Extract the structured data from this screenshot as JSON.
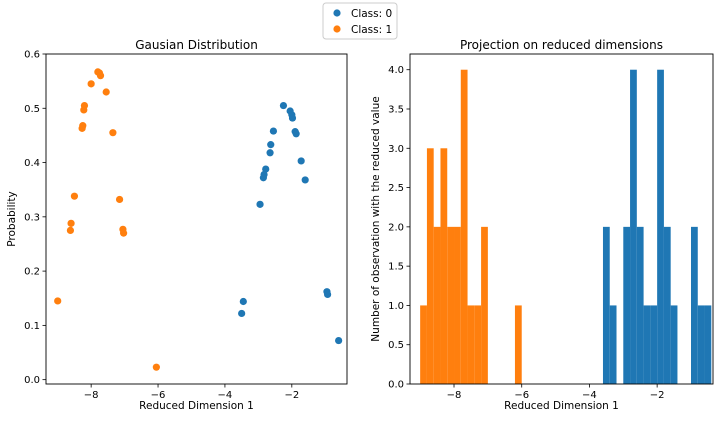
{
  "legend": {
    "entries": [
      {
        "label": "Class: 0",
        "color": "#1f77b4"
      },
      {
        "label": "Class: 1",
        "color": "#ff7f0e"
      }
    ],
    "placement": "top-center"
  },
  "chart_data": [
    {
      "type": "scatter",
      "title": "Gausian Distribution",
      "xlabel": "Reduced Dimension 1",
      "ylabel": "Probability",
      "xlim": [
        -9.35,
        -0.35
      ],
      "ylim": [
        -0.008,
        0.6
      ],
      "xticks": [
        -8,
        -6,
        -4,
        -2
      ],
      "xtick_labels": [
        "−8",
        "−6",
        "−4",
        "−2"
      ],
      "yticks": [
        0.0,
        0.1,
        0.2,
        0.3,
        0.4,
        0.5,
        0.6
      ],
      "ytick_labels": [
        "0.0",
        "0.1",
        "0.2",
        "0.3",
        "0.4",
        "0.5",
        "0.6"
      ],
      "grid": false,
      "series": [
        {
          "name": "Class: 0",
          "color": "#1f77b4",
          "points": [
            [
              -2.25,
              0.505
            ],
            [
              -2.05,
              0.495
            ],
            [
              -2.0,
              0.488
            ],
            [
              -1.98,
              0.482
            ],
            [
              -1.9,
              0.457
            ],
            [
              -1.87,
              0.453
            ],
            [
              -2.55,
              0.458
            ],
            [
              -2.63,
              0.433
            ],
            [
              -2.65,
              0.418
            ],
            [
              -1.72,
              0.403
            ],
            [
              -2.78,
              0.388
            ],
            [
              -2.83,
              0.378
            ],
            [
              -2.85,
              0.372
            ],
            [
              -1.6,
              0.368
            ],
            [
              -2.95,
              0.323
            ],
            [
              -3.45,
              0.144
            ],
            [
              -3.5,
              0.122
            ],
            [
              -0.95,
              0.162
            ],
            [
              -0.93,
              0.157
            ],
            [
              -0.6,
              0.072
            ]
          ]
        },
        {
          "name": "Class: 1",
          "color": "#ff7f0e",
          "points": [
            [
              -7.8,
              0.567
            ],
            [
              -7.75,
              0.565
            ],
            [
              -7.72,
              0.56
            ],
            [
              -8.0,
              0.545
            ],
            [
              -7.55,
              0.53
            ],
            [
              -8.2,
              0.505
            ],
            [
              -8.22,
              0.497
            ],
            [
              -8.25,
              0.468
            ],
            [
              -8.27,
              0.463
            ],
            [
              -7.35,
              0.455
            ],
            [
              -8.5,
              0.338
            ],
            [
              -7.15,
              0.332
            ],
            [
              -8.6,
              0.288
            ],
            [
              -8.62,
              0.275
            ],
            [
              -7.05,
              0.277
            ],
            [
              -7.03,
              0.27
            ],
            [
              -9.0,
              0.145
            ],
            [
              -6.05,
              0.023
            ]
          ]
        }
      ]
    },
    {
      "type": "bar",
      "subtype": "histogram",
      "title": "Projection on reduced dimensions",
      "xlabel": "Reduced Dimension 1",
      "ylabel": "Number of observation with the reduced value",
      "xlim": [
        -9.3,
        -0.35
      ],
      "ylim": [
        0,
        4.2
      ],
      "xticks": [
        -8,
        -6,
        -4,
        -2
      ],
      "xtick_labels": [
        "−8",
        "−6",
        "−4",
        "−2"
      ],
      "yticks": [
        0.0,
        0.5,
        1.0,
        1.5,
        2.0,
        2.5,
        3.0,
        3.5,
        4.0
      ],
      "ytick_labels": [
        "0.0",
        "0.5",
        "1.0",
        "1.5",
        "2.0",
        "2.5",
        "3.0",
        "3.5",
        "4.0"
      ],
      "grid": false,
      "bin_width": 0.2,
      "series": [
        {
          "name": "Class: 0",
          "color": "#1f77b4",
          "bin_starts": [
            -3.6,
            -3.4,
            -3.2,
            -3.0,
            -2.8,
            -2.6,
            -2.4,
            -2.2,
            -2.0,
            -1.8,
            -1.6,
            -1.4,
            -1.2,
            -1.0,
            -0.8,
            -0.6
          ],
          "counts": [
            2,
            1,
            0,
            2,
            4,
            2,
            1,
            1,
            4,
            2,
            1,
            0,
            0,
            2,
            1,
            1
          ]
        },
        {
          "name": "Class: 1",
          "color": "#ff7f0e",
          "bin_starts": [
            -9.0,
            -8.8,
            -8.6,
            -8.4,
            -8.2,
            -8.0,
            -7.8,
            -7.6,
            -7.4,
            -7.2,
            -7.0,
            -6.8,
            -6.6,
            -6.4,
            -6.2
          ],
          "counts": [
            1,
            3,
            2,
            3,
            2,
            2,
            4,
            1,
            1,
            2,
            0,
            0,
            0,
            0,
            1
          ]
        }
      ]
    }
  ]
}
